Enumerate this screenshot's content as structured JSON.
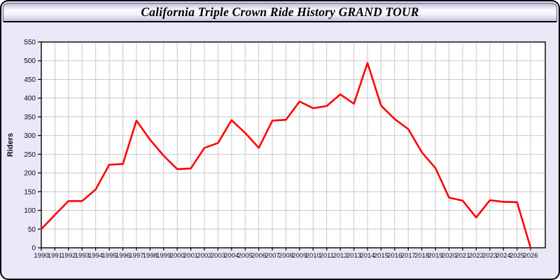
{
  "window": {
    "title": "California Triple Crown Ride History GRAND TOUR"
  },
  "colors": {
    "page_bg": "#e8e8f7",
    "plot_bg": "#ffffff",
    "grid": "#c8c8c8",
    "axis": "#000000",
    "line": "#ff0000",
    "tick_label": "#0a0a23",
    "titlebar_top": "#cdcdea",
    "titlebar_bottom": "#c3c3e1"
  },
  "chart_data": {
    "type": "line",
    "title": "California Triple Crown Ride History GRAND TOUR",
    "xlabel": "",
    "ylabel": "Riders",
    "ylim": [
      0,
      550
    ],
    "y_tick_step": 50,
    "grid": true,
    "legend": "none",
    "series_name": "Riders",
    "line_color": "#ff0000",
    "categories": [
      1990,
      1991,
      1992,
      1993,
      1994,
      1995,
      1996,
      1997,
      1998,
      1999,
      2000,
      2001,
      2002,
      2003,
      2004,
      2005,
      2006,
      2007,
      2008,
      2009,
      2010,
      2011,
      2012,
      2013,
      2014,
      2015,
      2016,
      2017,
      2018,
      2019,
      2020,
      2021,
      2022,
      2023,
      2024,
      2025,
      2026
    ],
    "values": [
      50,
      88,
      125,
      125,
      156,
      222,
      224,
      340,
      289,
      246,
      210,
      212,
      267,
      280,
      341,
      307,
      267,
      340,
      342,
      391,
      373,
      379,
      410,
      385,
      494,
      380,
      344,
      317,
      255,
      213,
      134,
      126,
      81,
      127,
      123,
      122,
      0
    ]
  }
}
